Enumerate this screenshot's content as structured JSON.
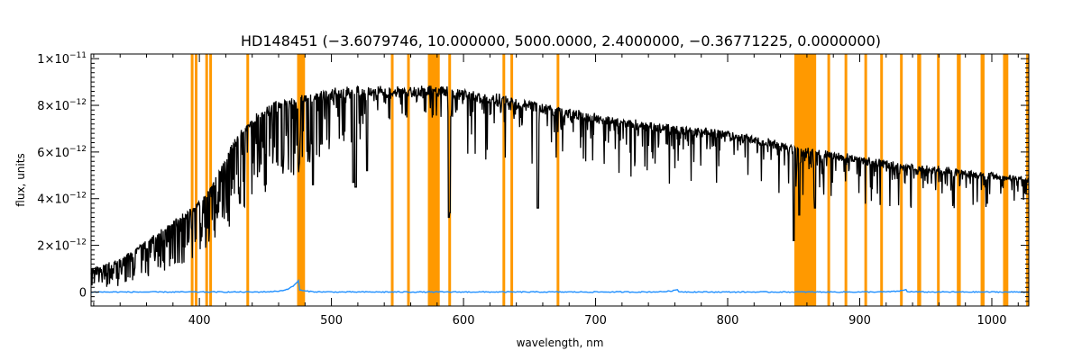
{
  "chart_data": {
    "type": "line",
    "title": "HD148451   (−3.6079746, 10.000000, 5000.0000, 2.4000000, −0.36771225, 0.0000000)",
    "xlabel": "wavelength, nm",
    "ylabel": "flux, units",
    "xlim": [
      318,
      1028
    ],
    "ylim": [
      -6e-13,
      1.02e-11
    ],
    "grid": false,
    "x_ticks": [
      {
        "value": 400,
        "label": "400"
      },
      {
        "value": 500,
        "label": "500"
      },
      {
        "value": 600,
        "label": "600"
      },
      {
        "value": 700,
        "label": "700"
      },
      {
        "value": 800,
        "label": "800"
      },
      {
        "value": 900,
        "label": "900"
      },
      {
        "value": 1000,
        "label": "1000"
      }
    ],
    "y_ticks": [
      {
        "value": 0,
        "label": "0",
        "exp": ""
      },
      {
        "value": 2e-12,
        "label": "2×10",
        "exp": "−12"
      },
      {
        "value": 4e-12,
        "label": "4×10",
        "exp": "−12"
      },
      {
        "value": 6e-12,
        "label": "6×10",
        "exp": "−12"
      },
      {
        "value": 8e-12,
        "label": "8×10",
        "exp": "−12"
      },
      {
        "value": 1e-11,
        "label": "1×10",
        "exp": "−11"
      }
    ],
    "masked_regions_nm": [
      [
        393.5,
        394.5
      ],
      [
        396.5,
        397.5
      ],
      [
        404.5,
        405.5
      ],
      [
        407.5,
        408.5
      ],
      [
        435.6,
        436.6
      ],
      [
        474.0,
        480.0
      ],
      [
        545.0,
        546.0
      ],
      [
        557.3,
        558.3
      ],
      [
        573.0,
        582.0
      ],
      [
        588.5,
        590.0
      ],
      [
        629.5,
        630.5
      ],
      [
        635.5,
        636.5
      ],
      [
        670.5,
        671.5
      ],
      [
        850.5,
        867.0
      ],
      [
        875.5,
        877.5
      ],
      [
        888.5,
        890.0
      ],
      [
        903.5,
        905.5
      ],
      [
        915.5,
        917.5
      ],
      [
        930.5,
        932.5
      ],
      [
        943.5,
        946.5
      ],
      [
        958.5,
        960.5
      ],
      [
        973.5,
        976.5
      ],
      [
        991.5,
        994.5
      ],
      [
        1008.5,
        1012.5
      ],
      [
        1026.0,
        1028.0
      ]
    ],
    "series": [
      {
        "name": "",
        "color": "#000000",
        "continuum": [
          [
            318,
            1e-12
          ],
          [
            340,
            1.4e-12
          ],
          [
            360,
            2.2e-12
          ],
          [
            380,
            3e-12
          ],
          [
            395,
            3.6e-12
          ],
          [
            405,
            4.2e-12
          ],
          [
            415,
            5.2e-12
          ],
          [
            425,
            6.4e-12
          ],
          [
            435,
            7.2e-12
          ],
          [
            445,
            7.8e-12
          ],
          [
            460,
            8.2e-12
          ],
          [
            475,
            8.3e-12
          ],
          [
            480,
            8.5e-12
          ],
          [
            500,
            8.7e-12
          ],
          [
            530,
            8.8e-12
          ],
          [
            560,
            8.8e-12
          ],
          [
            580,
            8.8e-12
          ],
          [
            600,
            8.7e-12
          ],
          [
            650,
            8.2e-12
          ],
          [
            700,
            7.6e-12
          ],
          [
            750,
            7.2e-12
          ],
          [
            800,
            6.9e-12
          ],
          [
            850,
            6.3e-12
          ],
          [
            868,
            6.1e-12
          ],
          [
            900,
            5.8e-12
          ],
          [
            950,
            5.4e-12
          ],
          [
            1000,
            5.1e-12
          ],
          [
            1028,
            4.9e-12
          ]
        ],
        "strong_absorption_lines": [
          [
            393.4,
            3.8e-12
          ],
          [
            396.8,
            3.6e-12
          ],
          [
            430.8,
            3.8e-12
          ],
          [
            486.1,
            4.6e-12
          ],
          [
            516.7,
            4.7e-12
          ],
          [
            518.4,
            4.5e-12
          ],
          [
            527.0,
            5.2e-12
          ],
          [
            589.0,
            3.2e-12
          ],
          [
            589.6,
            3.4e-12
          ],
          [
            656.3,
            3.6e-12
          ],
          [
            850.0,
            2.2e-12
          ],
          [
            854.2,
            3.3e-12
          ],
          [
            866.2,
            3.6e-12
          ]
        ]
      },
      {
        "name": "",
        "color": "#1f8fff",
        "level": 0.0,
        "bumps": [
          [
            475,
            5e-13
          ],
          [
            762,
            1e-13
          ],
          [
            935,
            1e-13
          ]
        ]
      }
    ],
    "mask_color": "#ff9900"
  }
}
